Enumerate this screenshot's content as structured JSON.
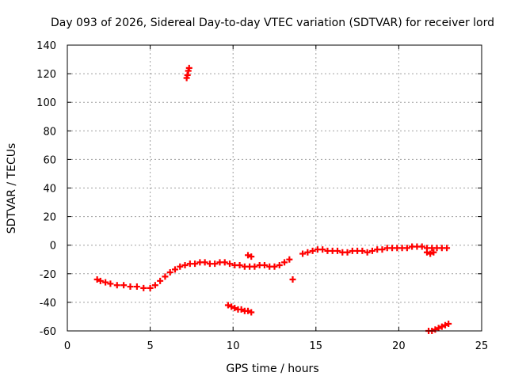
{
  "chart_data": {
    "type": "scatter",
    "title": "Day 093 of 2026, Sidereal Day-to-day VTEC variation (SDTVAR) for receiver lord",
    "xlabel": "GPS time / hours",
    "ylabel": "SDTVAR / TECUs",
    "xlim": [
      0,
      25
    ],
    "ylim": [
      -60,
      140
    ],
    "xticks": [
      0,
      5,
      10,
      15,
      20,
      25
    ],
    "yticks": [
      -60,
      -40,
      -20,
      0,
      20,
      40,
      60,
      80,
      100,
      120,
      140
    ],
    "grid": true,
    "marker": "plus",
    "colors": {
      "series": "#ff0000",
      "grid": "#a0a0a0",
      "axis": "#000000"
    },
    "series": [
      {
        "name": "SDTVAR",
        "segments": [
          {
            "name": "main-trace",
            "x": [
              1.8,
              2.0,
              2.3,
              2.6,
              3.0,
              3.4,
              3.8,
              4.2,
              4.6,
              5.0,
              5.3,
              5.6,
              5.9,
              6.2,
              6.5,
              6.8,
              7.1,
              7.4,
              7.7,
              8.0,
              8.3,
              8.6,
              8.9,
              9.2,
              9.5,
              9.8,
              10.1,
              10.4,
              10.7,
              11.0,
              11.3,
              11.6,
              11.9,
              12.2,
              12.5,
              12.8,
              13.1,
              13.4
            ],
            "y": [
              -24,
              -25,
              -26,
              -27,
              -28,
              -28,
              -29,
              -29,
              -30,
              -30,
              -28,
              -25,
              -22,
              -19,
              -17,
              -15,
              -14,
              -13,
              -13,
              -12,
              -12,
              -13,
              -13,
              -12,
              -12,
              -13,
              -14,
              -14,
              -15,
              -15,
              -15,
              -14,
              -14,
              -15,
              -15,
              -14,
              -12,
              -10
            ]
          },
          {
            "name": "late-trace",
            "x": [
              14.2,
              14.5,
              14.8,
              15.1,
              15.4,
              15.7,
              16.0,
              16.3,
              16.6,
              16.9,
              17.2,
              17.5,
              17.8,
              18.1,
              18.4,
              18.7,
              19.0,
              19.3,
              19.6,
              19.9,
              20.2,
              20.5,
              20.8,
              21.1,
              21.4,
              21.7,
              22.0,
              22.3,
              22.6,
              22.9
            ],
            "y": [
              -6,
              -5,
              -4,
              -3,
              -3,
              -4,
              -4,
              -4,
              -5,
              -5,
              -4,
              -4,
              -4,
              -5,
              -4,
              -3,
              -3,
              -2,
              -2,
              -2,
              -2,
              -2,
              -1,
              -1,
              -1,
              -2,
              -2,
              -2,
              -2,
              -2
            ]
          },
          {
            "name": "dip-trace",
            "x": [
              21.7,
              21.9,
              22.1
            ],
            "y": [
              -5,
              -6,
              -5
            ]
          },
          {
            "name": "outlier-high",
            "x": [
              7.2,
              7.25,
              7.3,
              7.35
            ],
            "y": [
              117,
              119,
              122,
              124
            ]
          },
          {
            "name": "outlier-low",
            "x": [
              9.7,
              9.9,
              10.1,
              10.3,
              10.5,
              10.7,
              10.9,
              11.1
            ],
            "y": [
              -42,
              -43,
              -44,
              -45,
              -45,
              -46,
              -46,
              -47
            ]
          },
          {
            "name": "outlier-short",
            "x": [
              10.9,
              11.1
            ],
            "y": [
              -7,
              -8
            ]
          },
          {
            "name": "outlier-mid",
            "x": [
              13.6
            ],
            "y": [
              -24
            ]
          },
          {
            "name": "outlier-end",
            "x": [
              21.8,
              22.0,
              22.2,
              22.4,
              22.6,
              22.8,
              23.0
            ],
            "y": [
              -60,
              -60,
              -59,
              -58,
              -57,
              -56,
              -55
            ]
          }
        ]
      }
    ]
  }
}
